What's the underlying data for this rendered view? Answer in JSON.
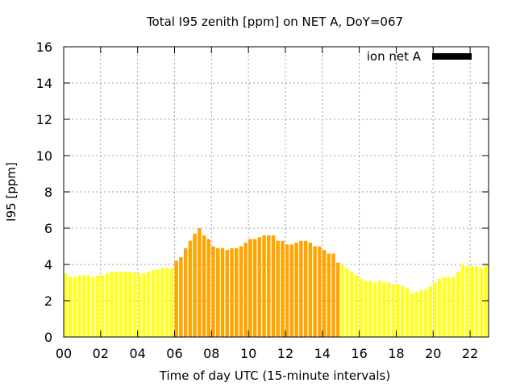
{
  "chart_data": {
    "type": "bar",
    "title": "Total I95 zenith [ppm] on NET A, DoY=067",
    "xlabel": "Time of day UTC (15-minute intervals)",
    "ylabel": "I95 [ppm]",
    "xlim": [
      0,
      23
    ],
    "ylim": [
      0,
      16
    ],
    "x_ticks": [
      "00",
      "02",
      "04",
      "06",
      "08",
      "10",
      "12",
      "14",
      "16",
      "18",
      "20",
      "22"
    ],
    "y_ticks": [
      "0",
      "2",
      "4",
      "6",
      "8",
      "10",
      "12",
      "14",
      "16"
    ],
    "grid": true,
    "legend_position": "top-right",
    "interval_hours": 0.25,
    "series": [
      {
        "name": "ion net A",
        "legend_color": "#000000",
        "values": [
          3.5,
          3.3,
          3.3,
          3.4,
          3.4,
          3.4,
          3.3,
          3.4,
          3.4,
          3.5,
          3.6,
          3.6,
          3.6,
          3.6,
          3.6,
          3.6,
          3.5,
          3.5,
          3.6,
          3.7,
          3.7,
          3.8,
          3.8,
          3.8,
          4.2,
          4.4,
          4.9,
          5.3,
          5.7,
          6.0,
          5.6,
          5.4,
          5.0,
          4.9,
          4.9,
          4.8,
          4.9,
          4.9,
          5.0,
          5.2,
          5.4,
          5.4,
          5.5,
          5.6,
          5.6,
          5.6,
          5.3,
          5.3,
          5.1,
          5.1,
          5.2,
          5.3,
          5.3,
          5.2,
          5.0,
          5.0,
          4.8,
          4.6,
          4.6,
          4.1,
          4.0,
          3.8,
          3.6,
          3.4,
          3.2,
          3.1,
          3.1,
          3.0,
          3.1,
          3.0,
          3.0,
          2.9,
          2.9,
          2.8,
          2.7,
          2.4,
          2.5,
          2.6,
          2.6,
          2.8,
          3.0,
          3.2,
          3.3,
          3.3,
          3.3,
          3.6,
          4.0,
          3.9,
          3.9,
          3.9,
          3.8,
          4.0
        ],
        "colors": [
          "#ffff22",
          "#ffa500"
        ],
        "color_by_index": [
          0,
          0,
          0,
          0,
          0,
          0,
          0,
          0,
          0,
          0,
          0,
          0,
          0,
          0,
          0,
          0,
          0,
          0,
          0,
          0,
          0,
          0,
          0,
          0,
          1,
          1,
          1,
          1,
          1,
          1,
          1,
          1,
          1,
          1,
          1,
          1,
          1,
          1,
          1,
          1,
          1,
          1,
          1,
          1,
          1,
          1,
          1,
          1,
          1,
          1,
          1,
          1,
          1,
          1,
          1,
          1,
          1,
          1,
          1,
          1,
          0,
          0,
          0,
          0,
          0,
          0,
          0,
          0,
          0,
          0,
          0,
          0,
          0,
          0,
          0,
          0,
          0,
          0,
          0,
          0,
          0,
          0,
          0,
          0,
          0,
          0,
          0,
          0,
          0,
          0,
          0,
          0
        ]
      }
    ]
  }
}
